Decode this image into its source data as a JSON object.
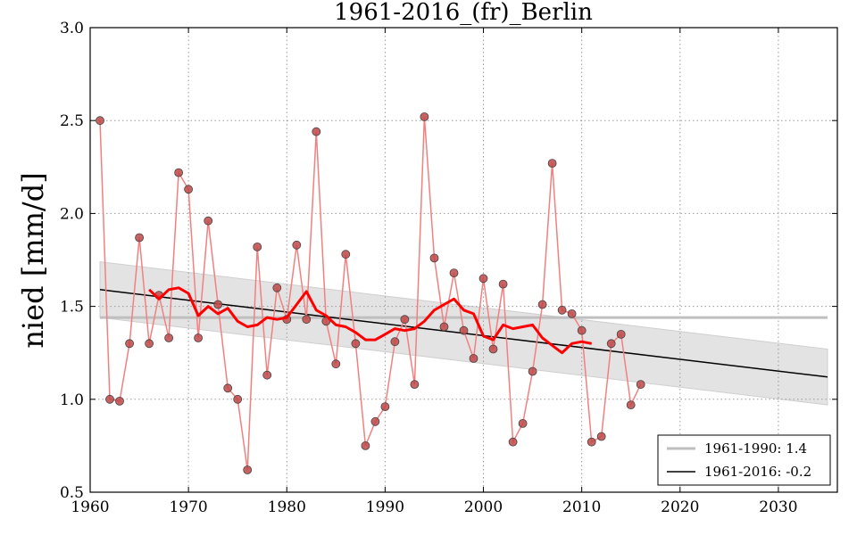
{
  "chart_data": {
    "type": "line",
    "title": "1961-2016_(fr)_Berlin",
    "xlabel": "",
    "ylabel": "nied [mm/d]",
    "xlim": [
      1960,
      2036
    ],
    "ylim": [
      0.5,
      3.0
    ],
    "x_ticks": [
      1960,
      1970,
      1980,
      1990,
      2000,
      2010,
      2020,
      2030
    ],
    "y_ticks": [
      0.5,
      1.0,
      1.5,
      2.0,
      2.5,
      3.0
    ],
    "x_tick_labels": [
      "1960",
      "1970",
      "1980",
      "1990",
      "2000",
      "2010",
      "2020",
      "2030"
    ],
    "y_tick_labels": [
      "0.5",
      "1.0",
      "1.5",
      "2.0",
      "2.5",
      "3.0"
    ],
    "grid": true,
    "legend_position": "bottom-right",
    "colors": {
      "annual_line": "#f28080",
      "marker_fill": "#c04848",
      "smoothed": "#ff0000",
      "baseline": "#bfbfbf",
      "trend": "#000000",
      "band": "#e3e3e3"
    },
    "series": [
      {
        "name": "annual",
        "x": [
          1961,
          1962,
          1963,
          1964,
          1965,
          1966,
          1967,
          1968,
          1969,
          1970,
          1971,
          1972,
          1973,
          1974,
          1975,
          1976,
          1977,
          1978,
          1979,
          1980,
          1981,
          1982,
          1983,
          1984,
          1985,
          1986,
          1987,
          1988,
          1989,
          1990,
          1991,
          1992,
          1993,
          1994,
          1995,
          1996,
          1997,
          1998,
          1999,
          2000,
          2001,
          2002,
          2003,
          2004,
          2005,
          2006,
          2007,
          2008,
          2009,
          2010,
          2011,
          2012,
          2013,
          2014,
          2015,
          2016
        ],
        "values": [
          2.5,
          1.0,
          0.99,
          1.3,
          1.87,
          1.3,
          1.56,
          1.33,
          2.22,
          2.13,
          1.33,
          1.96,
          1.51,
          1.06,
          1.0,
          0.62,
          1.82,
          1.13,
          1.6,
          1.43,
          1.83,
          1.43,
          2.44,
          1.42,
          1.19,
          1.78,
          1.3,
          0.75,
          0.88,
          0.96,
          1.31,
          1.43,
          1.08,
          2.52,
          1.76,
          1.39,
          1.68,
          1.37,
          1.22,
          1.65,
          1.27,
          1.62,
          0.77,
          0.87,
          1.15,
          1.51,
          2.27,
          1.48,
          1.46,
          1.37,
          0.77,
          0.8,
          1.3,
          1.35,
          0.97,
          1.08
        ]
      },
      {
        "name": "smoothed",
        "x": [
          1966,
          1967,
          1968,
          1969,
          1970,
          1971,
          1972,
          1973,
          1974,
          1975,
          1976,
          1977,
          1978,
          1979,
          1980,
          1981,
          1982,
          1983,
          1984,
          1985,
          1986,
          1987,
          1988,
          1989,
          1990,
          1991,
          1992,
          1993,
          1994,
          1995,
          1996,
          1997,
          1998,
          1999,
          2000,
          2001,
          2002,
          2003,
          2004,
          2005,
          2006,
          2007,
          2008,
          2009,
          2010,
          2011
        ],
        "values": [
          1.59,
          1.54,
          1.59,
          1.6,
          1.57,
          1.45,
          1.5,
          1.46,
          1.49,
          1.42,
          1.39,
          1.4,
          1.44,
          1.43,
          1.44,
          1.51,
          1.58,
          1.48,
          1.45,
          1.4,
          1.39,
          1.36,
          1.32,
          1.32,
          1.35,
          1.38,
          1.37,
          1.38,
          1.42,
          1.48,
          1.51,
          1.54,
          1.48,
          1.46,
          1.34,
          1.32,
          1.4,
          1.38,
          1.39,
          1.4,
          1.33,
          1.29,
          1.25,
          1.3,
          1.31,
          1.3
        ]
      },
      {
        "name": "1961-1990: 1.4",
        "x": [
          1961,
          2035
        ],
        "values": [
          1.44,
          1.44
        ]
      },
      {
        "name": "1961-2016: -0.2",
        "x": [
          1961,
          2035
        ],
        "values": [
          1.59,
          1.12
        ]
      }
    ],
    "confidence_band": {
      "x": [
        1961,
        2035
      ],
      "upper": [
        1.74,
        1.27
      ],
      "lower": [
        1.44,
        0.97
      ]
    },
    "legend": [
      {
        "label": "1961-1990: 1.4",
        "color": "#bfbfbf"
      },
      {
        "label": "1961-2016: -0.2",
        "color": "#000000"
      }
    ]
  }
}
